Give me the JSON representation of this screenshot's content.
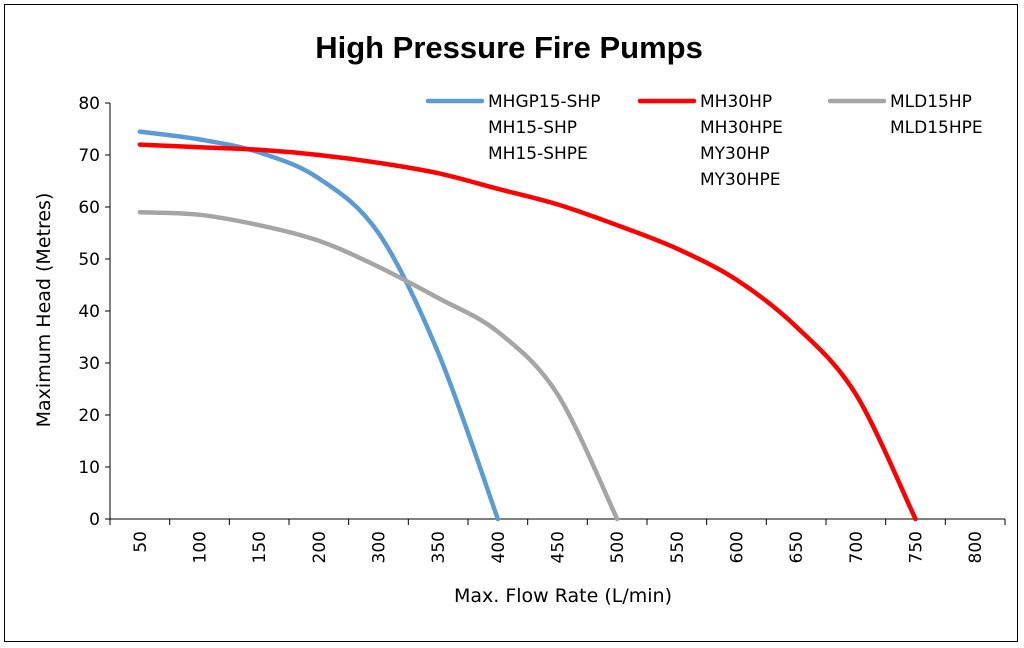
{
  "chart_data": {
    "type": "line",
    "title": "High Pressure Fire Pumps",
    "xlabel": "Max. Flow Rate (L/min)",
    "ylabel": "Maximum Head (Metres)",
    "categories": [
      "50",
      "100",
      "150",
      "200",
      "300",
      "350",
      "400",
      "450",
      "500",
      "550",
      "600",
      "650",
      "700",
      "750",
      "800"
    ],
    "ylim": [
      0,
      80
    ],
    "yticks": [
      0,
      10,
      20,
      30,
      40,
      50,
      60,
      70,
      80
    ],
    "grid": false,
    "legend_position": "top-right",
    "series": [
      {
        "legend_lines": [
          "MHGP15-SHP",
          "MH15-SHP",
          "MH15-SHPE"
        ],
        "color": "#5B9BD5",
        "points": [
          {
            "x": "50",
            "y": 74.5
          },
          {
            "x": "100",
            "y": 73
          },
          {
            "x": "150",
            "y": 70.5
          },
          {
            "x": "200",
            "y": 65.5
          },
          {
            "x": "300",
            "y": 55
          },
          {
            "x": "350",
            "y": 32
          },
          {
            "x": "400",
            "y": 0
          }
        ]
      },
      {
        "legend_lines": [
          "MH30HP",
          "MH30HPE",
          "MY30HP",
          "MY30HPE"
        ],
        "color": "#FF0000",
        "points": [
          {
            "x": "50",
            "y": 72
          },
          {
            "x": "100",
            "y": 71.5
          },
          {
            "x": "150",
            "y": 71
          },
          {
            "x": "200",
            "y": 70
          },
          {
            "x": "300",
            "y": 68.5
          },
          {
            "x": "350",
            "y": 66.5
          },
          {
            "x": "400",
            "y": 63.5
          },
          {
            "x": "450",
            "y": 60.5
          },
          {
            "x": "500",
            "y": 56.5
          },
          {
            "x": "550",
            "y": 52
          },
          {
            "x": "600",
            "y": 46
          },
          {
            "x": "650",
            "y": 37
          },
          {
            "x": "700",
            "y": 24
          },
          {
            "x": "750",
            "y": 0
          }
        ]
      },
      {
        "legend_lines": [
          "MLD15HP",
          "MLD15HPE"
        ],
        "color": "#A5A5A5",
        "points": [
          {
            "x": "50",
            "y": 59
          },
          {
            "x": "100",
            "y": 58.5
          },
          {
            "x": "150",
            "y": 56.5
          },
          {
            "x": "200",
            "y": 53.5
          },
          {
            "x": "300",
            "y": 48.5
          },
          {
            "x": "350",
            "y": 42.5
          },
          {
            "x": "400",
            "y": 36
          },
          {
            "x": "450",
            "y": 24
          },
          {
            "x": "500",
            "y": 0
          }
        ]
      }
    ]
  }
}
